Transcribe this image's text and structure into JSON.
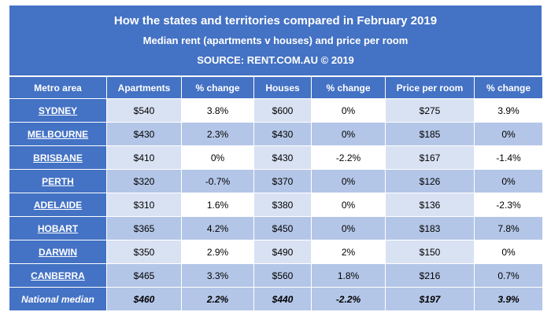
{
  "title": {
    "line1": "How the states and territories compared in February 2019",
    "line2": "Median rent (apartments v houses) and price per room",
    "line3": "SOURCE: RENT.COM.AU © 2019"
  },
  "headers": [
    "Metro area",
    "Apartments",
    "% change",
    "Houses",
    "% change",
    "Price per room",
    "% change"
  ],
  "rows": [
    {
      "area": "SYDNEY",
      "cells": [
        "$540",
        "3.8%",
        "$600",
        "0%",
        "$275",
        "3.9%"
      ]
    },
    {
      "area": "MELBOURNE",
      "cells": [
        "$430",
        "2.3%",
        "$430",
        "0%",
        "$185",
        "0%"
      ]
    },
    {
      "area": "BRISBANE",
      "cells": [
        "$410",
        "0%",
        "$430",
        "-2.2%",
        "$167",
        "-1.4%"
      ]
    },
    {
      "area": "PERTH",
      "cells": [
        "$320",
        "-0.7%",
        "$370",
        "0%",
        "$126",
        "0%"
      ]
    },
    {
      "area": "ADELAIDE",
      "cells": [
        "$310",
        "1.6%",
        "$380",
        "0%",
        "$136",
        "-2.3%"
      ]
    },
    {
      "area": "HOBART",
      "cells": [
        "$365",
        "4.2%",
        "$450",
        "0%",
        "$183",
        "7.8%"
      ]
    },
    {
      "area": "DARWIN",
      "cells": [
        "$350",
        "2.9%",
        "$490",
        "2%",
        "$150",
        "0%"
      ]
    },
    {
      "area": "CANBERRA",
      "cells": [
        "$465",
        "3.3%",
        "$560",
        "1.8%",
        "$216",
        "0.7%"
      ]
    }
  ],
  "national": {
    "area": "National median",
    "cells": [
      "$460",
      "2.2%",
      "$440",
      "-2.2%",
      "$197",
      "3.9%"
    ]
  }
}
